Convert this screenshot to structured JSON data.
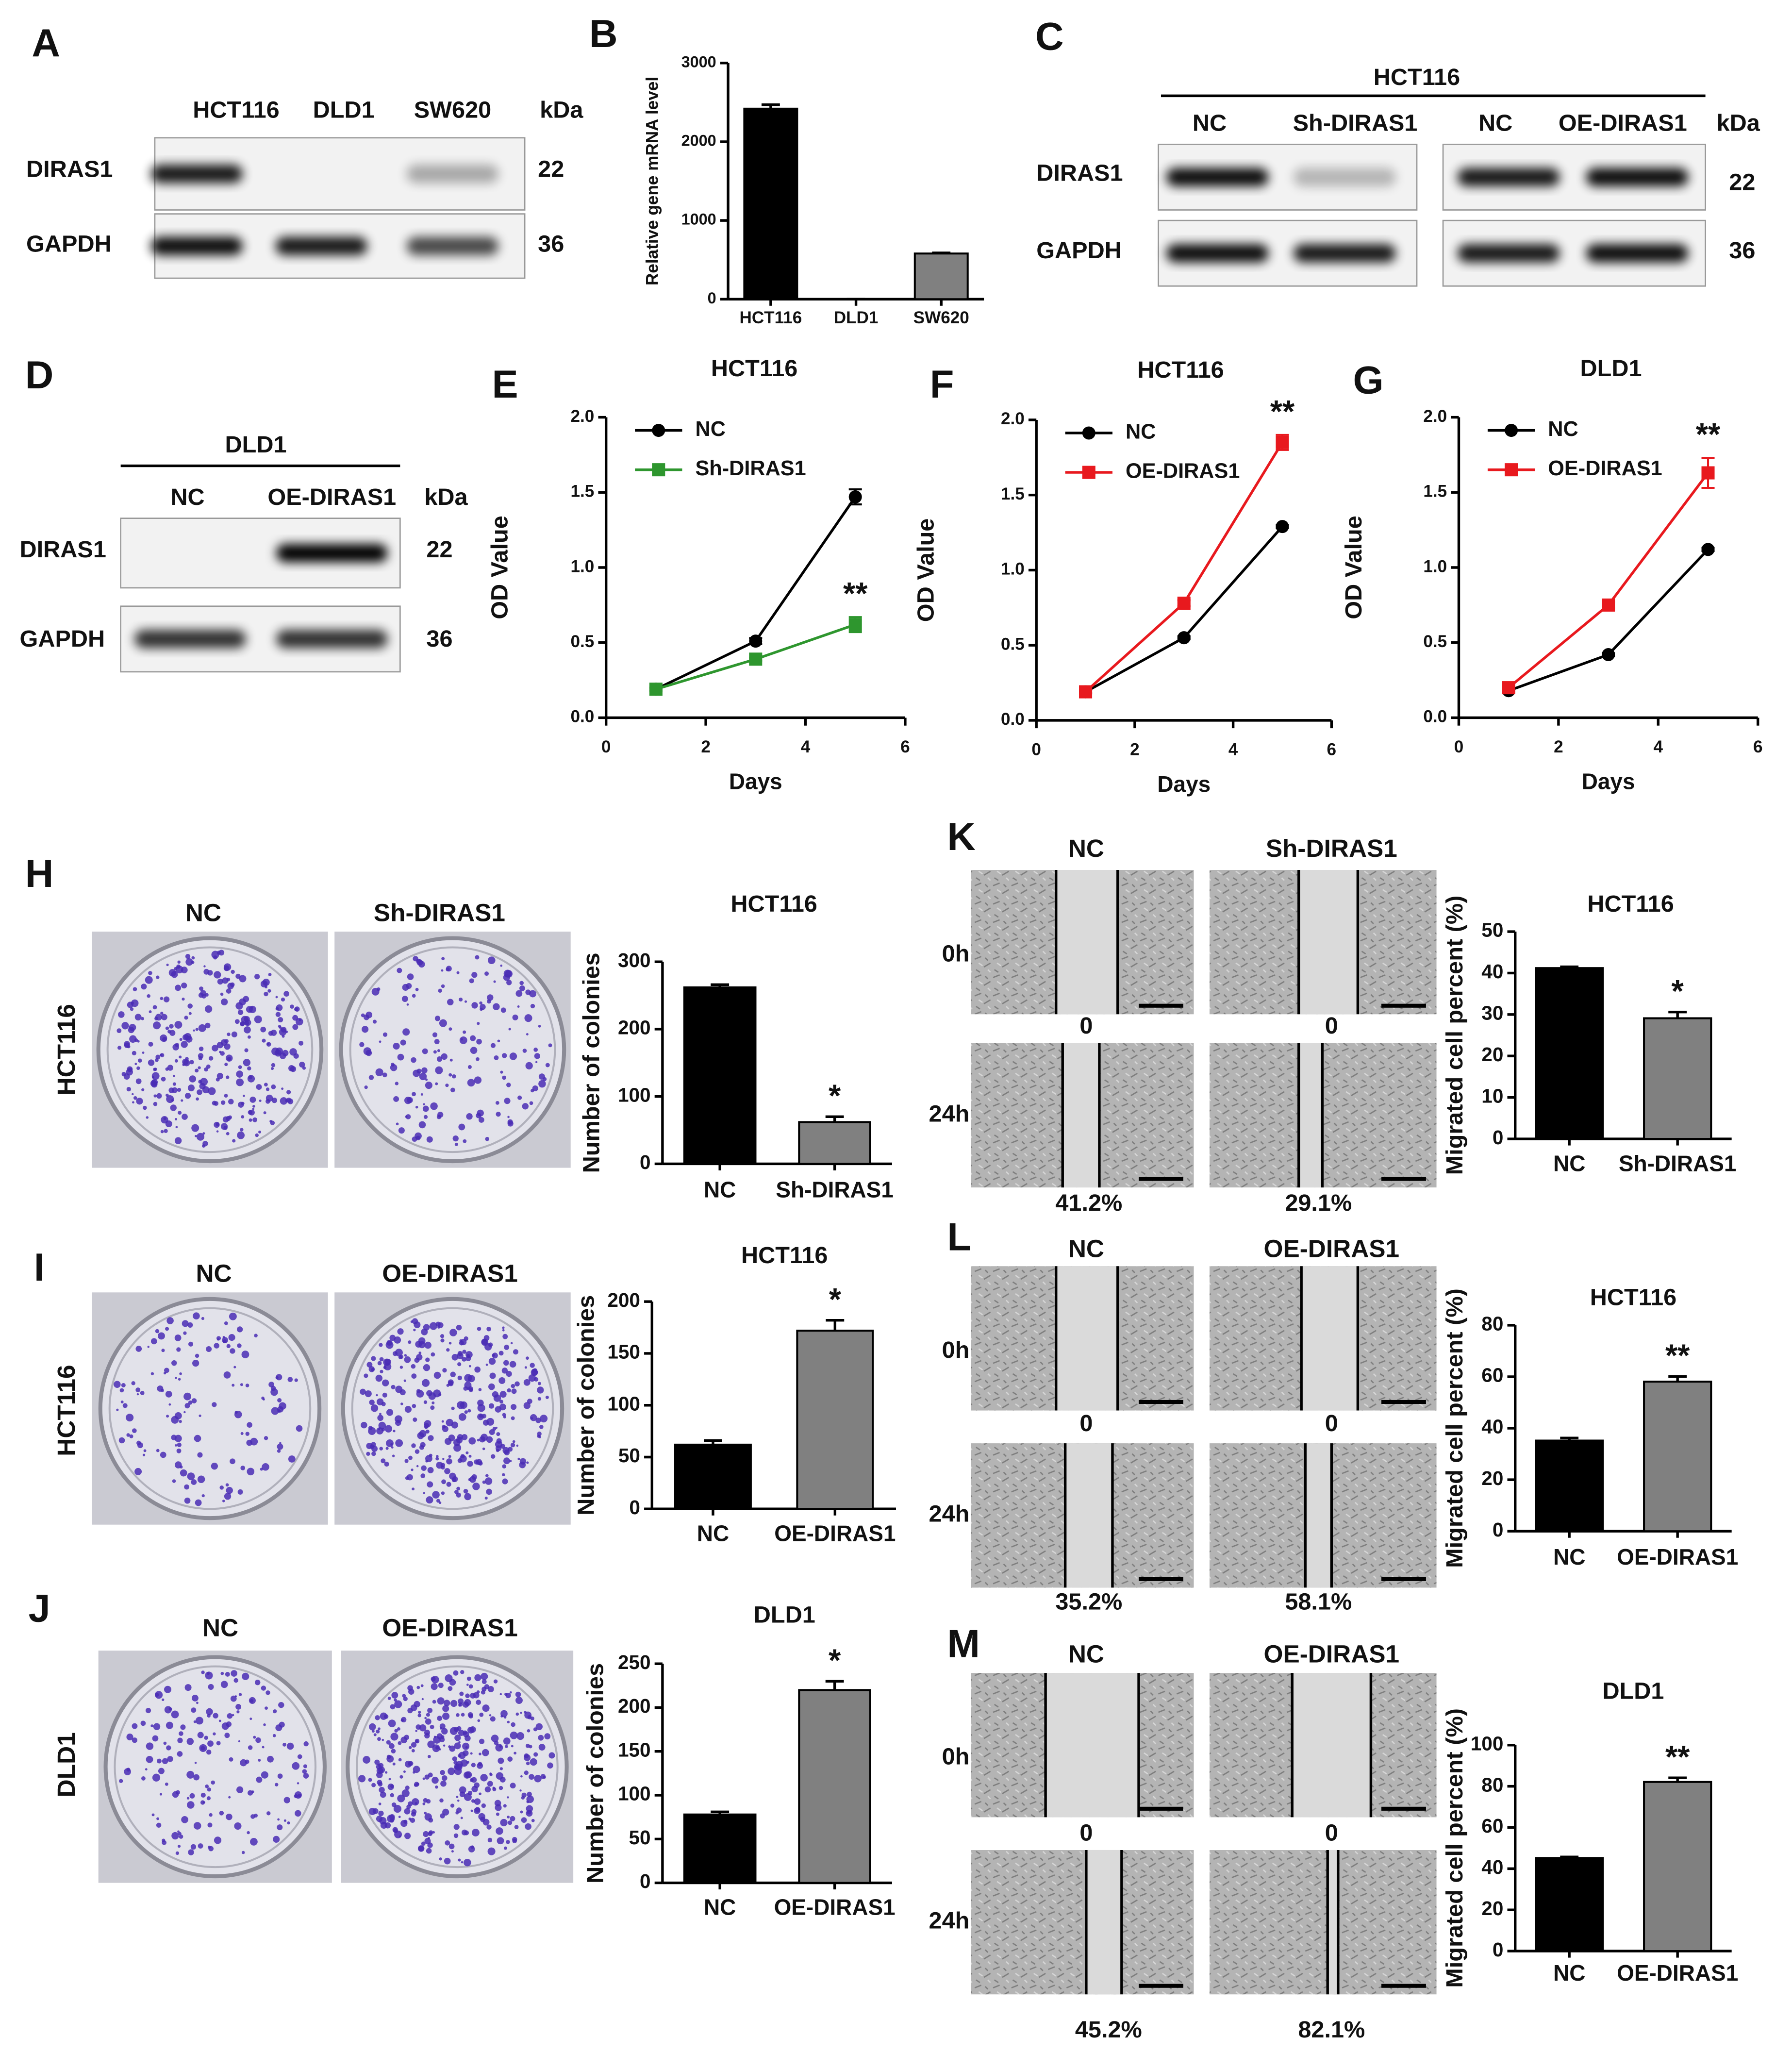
{
  "blots": [
    {
      "panel": "A",
      "lanes": [
        "HCT116",
        "DLD1",
        "SW620"
      ],
      "unit": "kDa",
      "rows": [
        {
          "label": "DIRAS1",
          "kda": 22
        },
        {
          "label": "GAPDH",
          "kda": 36
        }
      ]
    },
    {
      "panel": "C",
      "title": "HCT116",
      "lanes": [
        "NC",
        "Sh-DIRAS1",
        "NC",
        "OE-DIRAS1"
      ],
      "unit": "kDa",
      "rows": [
        {
          "label": "DIRAS1",
          "kda": 22
        },
        {
          "label": "GAPDH",
          "kda": 36
        }
      ]
    },
    {
      "panel": "D",
      "title": "DLD1",
      "lanes": [
        "NC",
        "OE-DIRAS1"
      ],
      "unit": "kDa",
      "rows": [
        {
          "label": "DIRAS1",
          "kda": 22
        },
        {
          "label": "GAPDH",
          "kda": 36
        }
      ]
    }
  ],
  "images": [
    {
      "panel": "H",
      "columns": [
        "NC",
        "Sh-DIRAS1"
      ],
      "row_label": "HCT116"
    },
    {
      "panel": "I",
      "columns": [
        "NC",
        "OE-DIRAS1"
      ],
      "row_label": "HCT116"
    },
    {
      "panel": "J",
      "columns": [
        "NC",
        "OE-DIRAS1"
      ],
      "row_label": "DLD1"
    },
    {
      "panel": "K",
      "columns": [
        "NC",
        "Sh-DIRAS1"
      ],
      "rows": [
        "0h",
        "24h"
      ],
      "start_labels": [
        0,
        0
      ]
    },
    {
      "panel": "L",
      "columns": [
        "NC",
        "OE-DIRAS1"
      ],
      "rows": [
        "0h",
        "24h"
      ],
      "start_labels": [
        0,
        0
      ]
    },
    {
      "panel": "M",
      "columns": [
        "NC",
        "OE-DIRAS1"
      ],
      "rows": [
        "0h",
        "24h"
      ],
      "start_labels": [
        0,
        0
      ]
    }
  ],
  "chart_data": [
    {
      "type": "bar",
      "panel": "B",
      "ylabel": "Relative gene mRNA level",
      "categories": [
        "HCT116",
        "DLD1",
        "SW620"
      ],
      "values": [
        2420,
        0,
        580
      ],
      "errors": [
        50,
        0,
        8
      ],
      "colors": [
        "#000000",
        "#000000",
        "#808080"
      ],
      "ylim": [
        0,
        3000
      ],
      "yticks": [
        0,
        1000,
        2000,
        3000
      ]
    },
    {
      "type": "line",
      "panel": "E",
      "title": "HCT116",
      "xlabel": "Days",
      "ylabel": "OD Value",
      "x": [
        1,
        3,
        5
      ],
      "series": [
        {
          "name": "NC",
          "color": "#000000",
          "marker": "circle",
          "values": [
            0.19,
            0.51,
            1.47
          ],
          "errors": [
            0.01,
            0.02,
            0.05
          ]
        },
        {
          "name": "Sh-DIRAS1",
          "color": "#2e962e",
          "marker": "square",
          "values": [
            0.19,
            0.39,
            0.62
          ],
          "errors": [
            0.01,
            0.01,
            0.05
          ]
        }
      ],
      "annotation": "**",
      "legend": "upper left",
      "xlim": [
        0,
        6
      ],
      "xticks": [
        0,
        2,
        4,
        6
      ],
      "ylim": [
        0,
        2
      ],
      "yticks": [
        {
          "value": 0,
          "label": "0.0"
        },
        {
          "value": 0.5,
          "label": "0.5"
        },
        {
          "value": 1,
          "label": "1.0"
        },
        {
          "value": 1.5,
          "label": "1.5"
        },
        {
          "value": 2,
          "label": "2.0"
        }
      ]
    },
    {
      "type": "line",
      "panel": "F",
      "title": "HCT116",
      "xlabel": "Days",
      "ylabel": "OD Value",
      "x": [
        1,
        3,
        5
      ],
      "series": [
        {
          "name": "NC",
          "color": "#000000",
          "marker": "circle",
          "values": [
            0.19,
            0.55,
            1.29
          ],
          "errors": [
            0.01,
            0.01,
            0.01
          ]
        },
        {
          "name": "OE-DIRAS1",
          "color": "#e8191e",
          "marker": "square",
          "values": [
            0.19,
            0.78,
            1.85
          ],
          "errors": [
            0.01,
            0.02,
            0.05
          ]
        }
      ],
      "annotation": "**",
      "legend": "upper left",
      "xlim": [
        0,
        6
      ],
      "xticks": [
        0,
        2,
        4,
        6
      ],
      "ylim": [
        0,
        2
      ],
      "yticks": [
        {
          "value": 0,
          "label": "0.0"
        },
        {
          "value": 0.5,
          "label": "0.5"
        },
        {
          "value": 1,
          "label": "1.0"
        },
        {
          "value": 1.5,
          "label": "1.5"
        },
        {
          "value": 2,
          "label": "2.0"
        }
      ]
    },
    {
      "type": "line",
      "panel": "G",
      "title": "DLD1",
      "xlabel": "Days",
      "ylabel": "OD Value",
      "x": [
        1,
        3,
        5
      ],
      "series": [
        {
          "name": "NC",
          "color": "#000000",
          "marker": "circle",
          "values": [
            0.18,
            0.42,
            1.12
          ],
          "errors": [
            0.01,
            0.01,
            0.01
          ]
        },
        {
          "name": "OE-DIRAS1",
          "color": "#e8191e",
          "marker": "square",
          "values": [
            0.2,
            0.75,
            1.63
          ],
          "errors": [
            0.02,
            0.02,
            0.1
          ]
        }
      ],
      "annotation": "**",
      "legend": "upper left",
      "xlim": [
        0,
        6
      ],
      "xticks": [
        0,
        2,
        4,
        6
      ],
      "ylim": [
        0,
        2
      ],
      "yticks": [
        {
          "value": 0,
          "label": "0.0"
        },
        {
          "value": 0.5,
          "label": "0.5"
        },
        {
          "value": 1,
          "label": "1.0"
        },
        {
          "value": 1.5,
          "label": "1.5"
        },
        {
          "value": 2,
          "label": "2.0"
        }
      ]
    },
    {
      "type": "bar",
      "title": "HCT116",
      "ylabel": "Number of colonies",
      "categories": [
        "NC",
        "Sh-DIRAS1"
      ],
      "values": [
        262,
        62
      ],
      "errors": [
        4,
        8
      ],
      "colors": [
        "#000000",
        "#808080"
      ],
      "annotation": "*",
      "ylim": [
        0,
        300
      ],
      "yticks": [
        0,
        100,
        200,
        300
      ]
    },
    {
      "type": "bar",
      "title": "HCT116",
      "ylabel": "Number of colonies",
      "categories": [
        "NC",
        "OE-DIRAS1"
      ],
      "values": [
        62,
        172
      ],
      "errors": [
        4,
        10
      ],
      "colors": [
        "#000000",
        "#808080"
      ],
      "annotation": "*",
      "ylim": [
        0,
        200
      ],
      "yticks": [
        0,
        50,
        100,
        150,
        200
      ]
    },
    {
      "type": "bar",
      "title": "DLD1",
      "ylabel": "Number of colonies",
      "categories": [
        "NC",
        "OE-DIRAS1"
      ],
      "values": [
        78,
        220
      ],
      "errors": [
        3,
        10
      ],
      "colors": [
        "#000000",
        "#808080"
      ],
      "annotation": "*",
      "ylim": [
        0,
        250
      ],
      "yticks": [
        0,
        50,
        100,
        150,
        200,
        250
      ]
    },
    {
      "type": "bar",
      "title": "HCT116",
      "ylabel": "Migrated cell percent (%)",
      "categories": [
        "NC",
        "Sh-DIRAS1"
      ],
      "values": [
        41.2,
        29.1
      ],
      "value_labels": [
        "41.2%",
        "29.1%"
      ],
      "errors": [
        0.3,
        1.5
      ],
      "colors": [
        "#000000",
        "#808080"
      ],
      "annotation": "*",
      "ylim": [
        0,
        50
      ],
      "yticks": [
        0,
        10,
        20,
        30,
        40,
        50
      ]
    },
    {
      "type": "bar",
      "title": "HCT116",
      "ylabel": "Migrated cell percent (%)",
      "categories": [
        "NC",
        "OE-DIRAS1"
      ],
      "values": [
        35.2,
        58.1
      ],
      "value_labels": [
        "35.2%",
        "58.1%"
      ],
      "errors": [
        1,
        2
      ],
      "colors": [
        "#000000",
        "#808080"
      ],
      "annotation": "**",
      "ylim": [
        0,
        80
      ],
      "yticks": [
        0,
        20,
        40,
        60,
        80
      ]
    },
    {
      "type": "bar",
      "title": "DLD1",
      "ylabel": "Migrated cell percent (%)",
      "categories": [
        "NC",
        "OE-DIRAS1"
      ],
      "values": [
        45.2,
        82.1
      ],
      "value_labels": [
        "45.2%",
        "82.1%"
      ],
      "errors": [
        0.5,
        2
      ],
      "colors": [
        "#000000",
        "#808080"
      ],
      "annotation": "**",
      "ylim": [
        0,
        100
      ],
      "yticks": [
        0,
        20,
        40,
        60,
        80,
        100
      ]
    }
  ]
}
